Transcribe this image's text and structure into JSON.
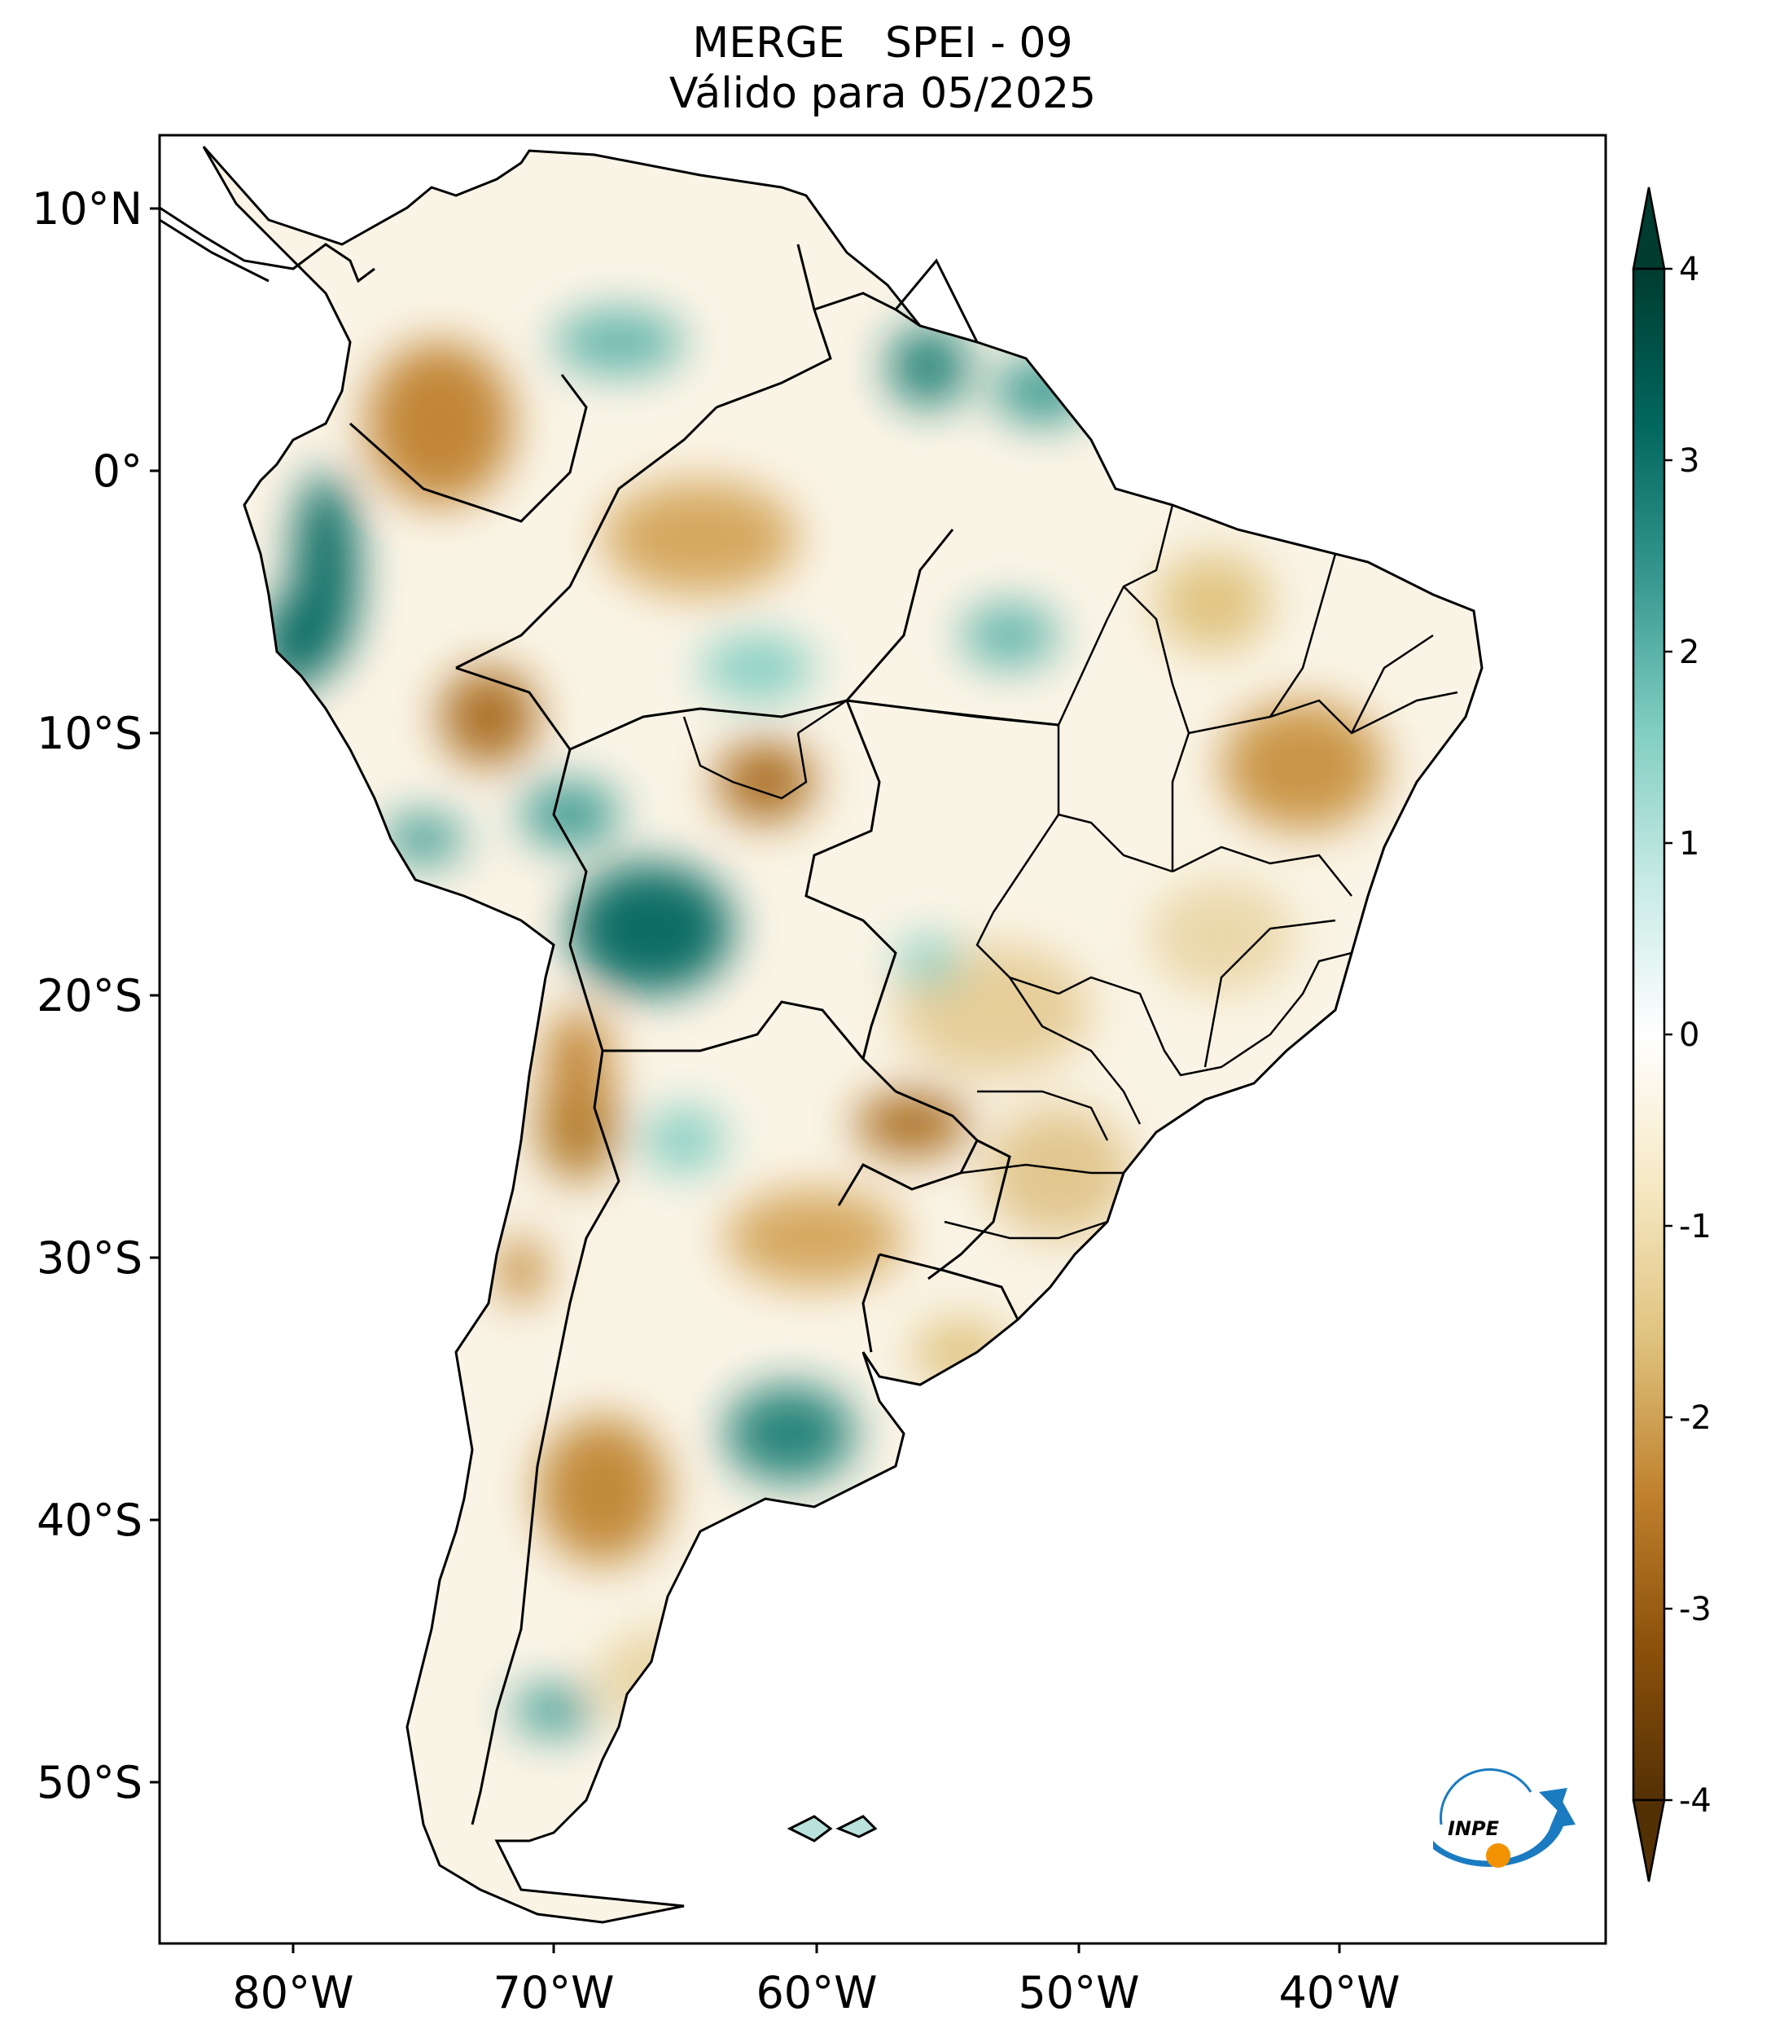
{
  "title": {
    "line1": "MERGE   SPEI - 09",
    "line2": "Válido para 05/2025"
  },
  "axes": {
    "lon_ticks": [
      "80°W",
      "70°W",
      "60°W",
      "50°W",
      "40°W"
    ],
    "lat_ticks": [
      "10°N",
      "0°",
      "10°S",
      "20°S",
      "30°S",
      "40°S",
      "50°S"
    ]
  },
  "colorbar": {
    "ticks": [
      "4",
      "3",
      "2",
      "1",
      "0",
      "-1",
      "-2",
      "-3",
      "-4"
    ],
    "colors": {
      "dry_extreme": "#543005",
      "dry_strong": "#8c510a",
      "dry_moderate": "#bf812d",
      "dry_mild": "#dfc27d",
      "dry_weak": "#f6e8c3",
      "neutral": "#ffffff",
      "wet_weak": "#c7eae5",
      "wet_mild": "#80cdc1",
      "wet_moderate": "#35978f",
      "wet_strong": "#01665e",
      "wet_extreme": "#003c30"
    }
  },
  "logo": {
    "text": "INPE",
    "color_blue": "#1a7bc1",
    "color_orange": "#f39200"
  }
}
